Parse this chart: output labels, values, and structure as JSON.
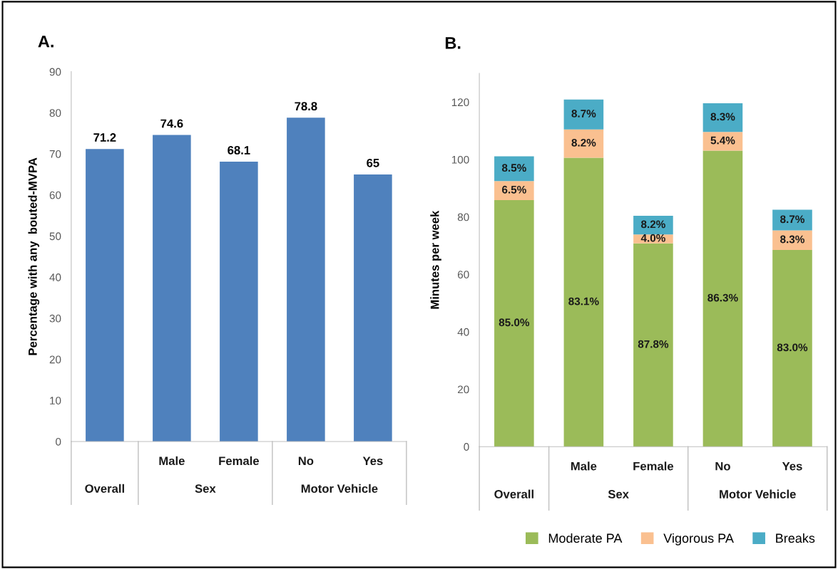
{
  "chart_data": [
    {
      "type": "bar",
      "title": "A.",
      "ylabel": "Percentage with any  bouted-MVPA",
      "categories": [
        null,
        "Male",
        "Female",
        "No",
        "Yes"
      ],
      "values": [
        71.2,
        74.6,
        68.1,
        78.8,
        65
      ],
      "color": "#4f81bd",
      "ylim": [
        0,
        90
      ],
      "yticks": [
        0,
        10,
        20,
        30,
        40,
        50,
        60,
        70,
        80,
        90
      ],
      "data_labels": true,
      "grid": false,
      "legend": false,
      "annotations": [
        "Overall",
        "Sex",
        "Motor Vehicle"
      ]
    },
    {
      "type": "bar",
      "title": "B.",
      "ylabel": "Minutes per week",
      "categories": [
        null,
        "Male",
        "Female",
        "No",
        "Yes"
      ],
      "stacked": true,
      "ylim": [
        0,
        130
      ],
      "yticks": [
        0,
        20,
        40,
        60,
        80,
        100,
        120
      ],
      "grid": false,
      "legend": "bottom",
      "annotations": [
        "Overall",
        "Sex",
        "Motor Vehicle",
        "85.0%",
        "83.1%",
        "87.8%",
        "86.3%",
        "83.0%",
        "6.5%",
        "8.2%",
        "4.0%",
        "5.4%",
        "8.3%",
        "8.5%",
        "8.7%",
        "8.2%",
        "8.3%",
        "8.7%"
      ],
      "series": [
        {
          "name": "Moderate PA",
          "color": "#9bbb59",
          "values": [
            85.9,
            100.6,
            70.8,
            103.1,
            68.5
          ]
        },
        {
          "name": "Vigorous PA",
          "color": "#fac090",
          "values": [
            6.6,
            9.9,
            3.1,
            6.5,
            6.8
          ]
        },
        {
          "name": "Breaks",
          "color": "#4bacc6",
          "values": [
            8.6,
            10.4,
            6.5,
            10.0,
            7.2
          ]
        }
      ]
    }
  ]
}
